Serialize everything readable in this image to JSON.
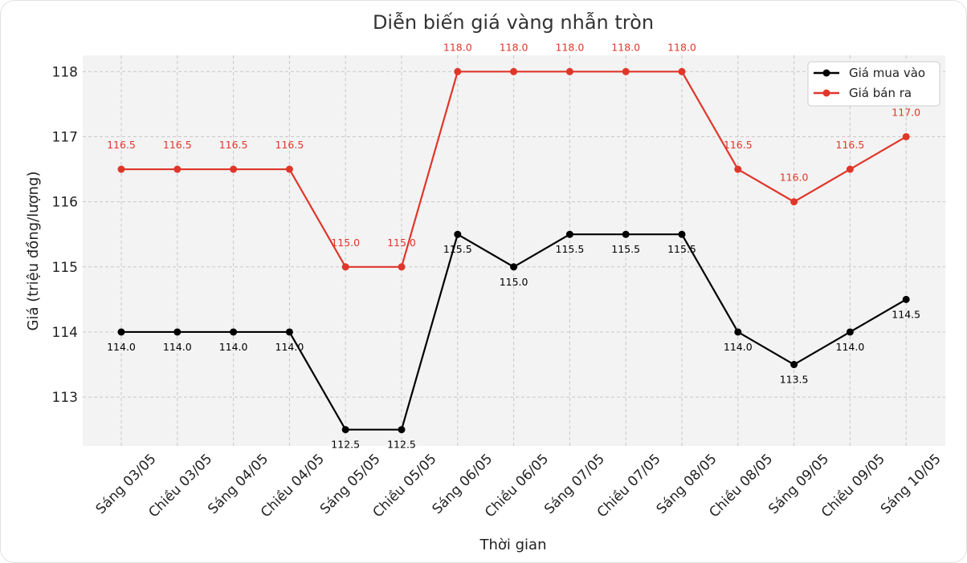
{
  "chart_data": {
    "type": "line",
    "title": "Diễn biến giá vàng nhẫn tròn",
    "xlabel": "Thời gian",
    "ylabel": "Giá (triệu đồng/lượng)",
    "ylim": [
      112.25,
      118.25
    ],
    "yticks": [
      113,
      114,
      115,
      116,
      117,
      118
    ],
    "grid": true,
    "legend_position": "top-right",
    "categories": [
      "Sáng 03/05",
      "Chiều 03/05",
      "Sáng 04/05",
      "Chiều 04/05",
      "Sáng 05/05",
      "Chiều 05/05",
      "Sáng 06/05",
      "Chiều 06/05",
      "Sáng 07/05",
      "Chiều 07/05",
      "Sáng 08/05",
      "Chiều 08/05",
      "Sáng 09/05",
      "Chiều 09/05",
      "Sáng 10/05"
    ],
    "series": [
      {
        "name": "Giá mua vào",
        "color": "#000000",
        "values": [
          114.0,
          114.0,
          114.0,
          114.0,
          112.5,
          112.5,
          115.5,
          115.0,
          115.5,
          115.5,
          115.5,
          114.0,
          113.5,
          114.0,
          114.5
        ],
        "labels": [
          "114.0",
          "114.0",
          "114.0",
          "114.0",
          "112.5",
          "112.5",
          "115.5",
          "115.0",
          "115.5",
          "115.5",
          "115.5",
          "114.0",
          "113.5",
          "114.0",
          "114.5"
        ]
      },
      {
        "name": "Giá bán ra",
        "color": "#e0362a",
        "values": [
          116.5,
          116.5,
          116.5,
          116.5,
          115.0,
          115.0,
          118.0,
          118.0,
          118.0,
          118.0,
          118.0,
          116.5,
          116.0,
          116.5,
          117.0
        ],
        "labels": [
          "116.5",
          "116.5",
          "116.5",
          "116.5",
          "115.0",
          "115.0",
          "118.0",
          "118.0",
          "118.0",
          "118.0",
          "118.0",
          "116.5",
          "116.0",
          "116.5",
          "117.0"
        ]
      }
    ]
  }
}
